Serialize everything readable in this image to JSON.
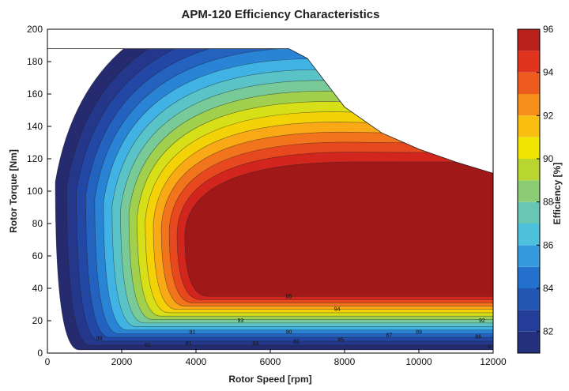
{
  "chart_data": {
    "type": "contour",
    "title": "APM-120 Efficiency Characteristics",
    "xlabel": "Rotor Speed [rpm]",
    "ylabel": "Rotor Torque [Nm]",
    "xlim": [
      0,
      12000
    ],
    "ylim": [
      0,
      200
    ],
    "x_ticks": [
      "0",
      "2000",
      "4000",
      "6000",
      "8000",
      "10000",
      "12000"
    ],
    "y_ticks": [
      "0",
      "20",
      "40",
      "60",
      "80",
      "100",
      "120",
      "140",
      "160",
      "180",
      "200"
    ],
    "colorbar": {
      "label": "Efficiency [%]",
      "range": [
        81,
        96
      ],
      "ticks": [
        "82",
        "84",
        "86",
        "88",
        "90",
        "92",
        "94",
        "96"
      ]
    },
    "grid": false,
    "torque_envelope": {
      "speed": [
        0,
        6500,
        7000,
        7500,
        8000,
        9000,
        10000,
        11000,
        12000
      ],
      "torque": [
        188,
        188,
        182,
        167,
        152,
        136,
        126,
        118,
        111
      ]
    },
    "peak_efficiency_region": {
      "level": 95,
      "speed_range": [
        3700,
        12000
      ],
      "torque_range": [
        35,
        118
      ]
    },
    "contour_labels": [
      {
        "value": "95",
        "speed": 6500,
        "torque": 34
      },
      {
        "value": "94",
        "speed": 7800,
        "torque": 26
      },
      {
        "value": "93",
        "speed": 5200,
        "torque": 19
      },
      {
        "value": "92",
        "speed": 11700,
        "torque": 19
      },
      {
        "value": "91",
        "speed": 3900,
        "torque": 12
      },
      {
        "value": "90",
        "speed": 6500,
        "torque": 12
      },
      {
        "value": "89",
        "speed": 10000,
        "torque": 12
      },
      {
        "value": "88",
        "speed": 1400,
        "torque": 8
      },
      {
        "value": "87",
        "speed": 9200,
        "torque": 10
      },
      {
        "value": "86",
        "speed": 11600,
        "torque": 9
      },
      {
        "value": "85",
        "speed": 7900,
        "torque": 7
      },
      {
        "value": "83",
        "speed": 5600,
        "torque": 5
      },
      {
        "value": "82",
        "speed": 6700,
        "torque": 6
      },
      {
        "value": "81",
        "speed": 3800,
        "torque": 5
      },
      {
        "value": "81",
        "speed": 2700,
        "torque": 4
      },
      {
        "value": "0",
        "speed": 11900,
        "torque": 3
      }
    ]
  }
}
